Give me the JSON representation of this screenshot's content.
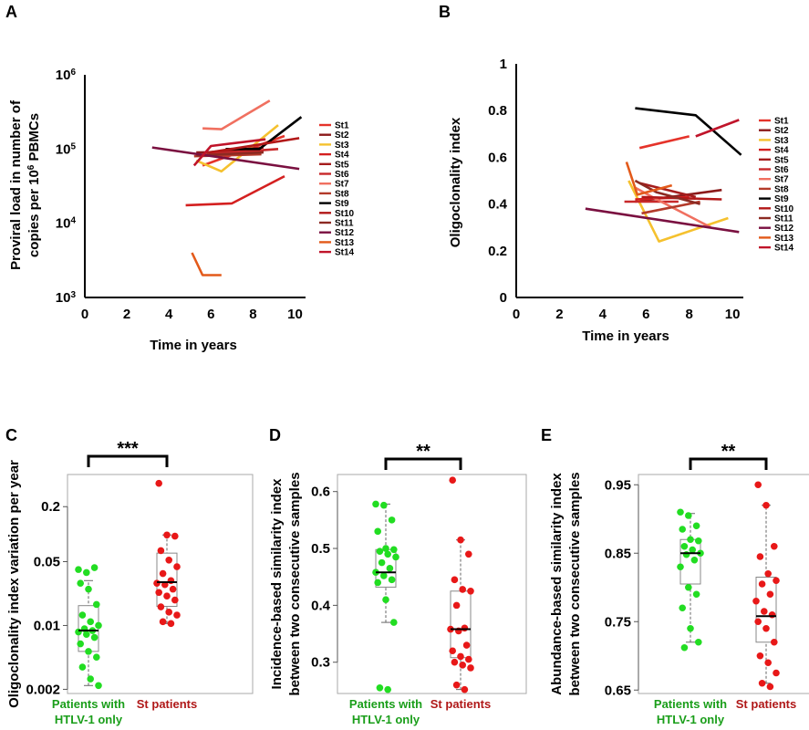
{
  "panels": {
    "A": "A",
    "B": "B",
    "C": "C",
    "D": "D",
    "E": "E"
  },
  "colors": {
    "St1": "#e5332a",
    "St2": "#8b1a1a",
    "St3": "#f5c12e",
    "St4": "#d42020",
    "St5": "#a51c1c",
    "St6": "#c8282a",
    "St7": "#f07060",
    "St8": "#b33a2a",
    "St9": "#000000",
    "St10": "#b21818",
    "St11": "#8c2a22",
    "St12": "#7a1040",
    "St13": "#e35a1a",
    "St14": "#c0142a",
    "green": "#22dd22",
    "red": "#e81818",
    "greenText": "#1a9e1a",
    "redText": "#b01818"
  },
  "chart_data": [
    {
      "type": "line",
      "panel": "A",
      "ylabel_line1": "Proviral load in number of",
      "ylabel_line2_pre": "copies per 10",
      "ylabel_line2_sup": "6",
      "ylabel_line2_post": " PBMCs",
      "xlabel": "Time in years",
      "yscale": "log",
      "ylim": [
        1000,
        1000000
      ],
      "xlim": [
        0,
        10.5
      ],
      "xticks": [
        "0",
        "2",
        "4",
        "6",
        "8",
        "10"
      ],
      "yticks": [
        {
          "base": "10",
          "exp": "3",
          "value": 1000
        },
        {
          "base": "10",
          "exp": "4",
          "value": 10000
        },
        {
          "base": "10",
          "exp": "5",
          "value": 100000
        },
        {
          "base": "10",
          "exp": "6",
          "value": 1000000
        }
      ],
      "series": [
        {
          "name": "St1",
          "points": [
            [
              5.6,
              60000
            ],
            [
              9.5,
              150000
            ]
          ]
        },
        {
          "name": "St2",
          "points": [
            [
              5.3,
              90000
            ],
            [
              8.5,
              92000
            ]
          ]
        },
        {
          "name": "St3",
          "points": [
            [
              5.3,
              70000
            ],
            [
              6.5,
              50000
            ],
            [
              9.2,
              210000
            ]
          ]
        },
        {
          "name": "St4",
          "points": [
            [
              4.8,
              17500
            ],
            [
              7.0,
              18500
            ],
            [
              9.5,
              43000
            ]
          ]
        },
        {
          "name": "St5",
          "points": [
            [
              5.8,
              90000
            ],
            [
              8.5,
              105000
            ]
          ]
        },
        {
          "name": "St6",
          "points": [
            [
              5.8,
              85000
            ],
            [
              9.2,
              100000
            ]
          ]
        },
        {
          "name": "St7",
          "points": [
            [
              5.6,
              190000
            ],
            [
              6.5,
              185000
            ],
            [
              8.8,
              450000
            ]
          ]
        },
        {
          "name": "St8",
          "points": [
            [
              5.2,
              80000
            ],
            [
              8.4,
              85000
            ]
          ]
        },
        {
          "name": "St9",
          "points": [
            [
              6.7,
              100000
            ],
            [
              8.3,
              100000
            ],
            [
              10.3,
              270000
            ]
          ]
        },
        {
          "name": "St10",
          "points": [
            [
              5.9,
              90000
            ],
            [
              10.2,
              140000
            ]
          ]
        },
        {
          "name": "St11",
          "points": [
            [
              5.3,
              82000
            ],
            [
              8.5,
              90000
            ]
          ]
        },
        {
          "name": "St12",
          "points": [
            [
              3.2,
              105000
            ],
            [
              10.2,
              54000
            ]
          ]
        },
        {
          "name": "St13",
          "points": [
            [
              5.1,
              4000
            ],
            [
              5.6,
              2000
            ],
            [
              6.5,
              2000
            ]
          ]
        },
        {
          "name": "St14",
          "points": [
            [
              5.2,
              60000
            ],
            [
              6.0,
              110000
            ],
            [
              8.6,
              135000
            ]
          ]
        }
      ]
    },
    {
      "type": "line",
      "panel": "B",
      "ylabel": "Oligoclonality index",
      "xlabel": "Time in years",
      "ylim": [
        0,
        1
      ],
      "xlim": [
        0,
        10.5
      ],
      "xticks": [
        "0",
        "2",
        "4",
        "6",
        "8",
        "10"
      ],
      "yticks": [
        "0",
        "0.2",
        "0.4",
        "0.6",
        "0.8",
        "1"
      ],
      "series": [
        {
          "name": "St1",
          "points": [
            [
              5.7,
              0.64
            ],
            [
              8.0,
              0.69
            ]
          ]
        },
        {
          "name": "St2",
          "points": [
            [
              5.5,
              0.41
            ],
            [
              9.5,
              0.46
            ]
          ]
        },
        {
          "name": "St3",
          "points": [
            [
              5.2,
              0.5
            ],
            [
              6.6,
              0.24
            ],
            [
              9.8,
              0.34
            ]
          ]
        },
        {
          "name": "St4",
          "points": [
            [
              5.5,
              0.42
            ],
            [
              8.0,
              0.43
            ]
          ]
        },
        {
          "name": "St5",
          "points": [
            [
              5.7,
              0.49
            ],
            [
              8.3,
              0.43
            ]
          ]
        },
        {
          "name": "St6",
          "points": [
            [
              5.0,
              0.41
            ],
            [
              7.5,
              0.41
            ]
          ]
        },
        {
          "name": "St7",
          "points": [
            [
              5.5,
              0.47
            ],
            [
              6.5,
              0.42
            ],
            [
              9.0,
              0.3
            ]
          ]
        },
        {
          "name": "St8",
          "points": [
            [
              5.8,
              0.36
            ],
            [
              8.5,
              0.41
            ]
          ]
        },
        {
          "name": "St9",
          "points": [
            [
              5.5,
              0.81
            ],
            [
              8.3,
              0.78
            ],
            [
              10.4,
              0.61
            ]
          ]
        },
        {
          "name": "St10",
          "points": [
            [
              5.8,
              0.43
            ],
            [
              9.5,
              0.42
            ]
          ]
        },
        {
          "name": "St11",
          "points": [
            [
              5.5,
              0.5
            ],
            [
              6.5,
              0.45
            ],
            [
              8.5,
              0.4
            ]
          ]
        },
        {
          "name": "St12",
          "points": [
            [
              3.2,
              0.38
            ],
            [
              10.3,
              0.28
            ]
          ]
        },
        {
          "name": "St13",
          "points": [
            [
              5.1,
              0.58
            ],
            [
              5.6,
              0.44
            ],
            [
              7.2,
              0.48
            ]
          ]
        },
        {
          "name": "St14",
          "points": [
            [
              8.3,
              0.69
            ],
            [
              10.3,
              0.76
            ]
          ]
        }
      ]
    },
    {
      "type": "scatter",
      "panel": "C",
      "ylabel": "Oligoclonality index variation per year",
      "yscale": "log",
      "ylim": [
        0.0018,
        0.45
      ],
      "yticks": [
        "0.002",
        "0.01",
        "0.05",
        "0.2"
      ],
      "ytick_values": [
        0.002,
        0.01,
        0.05,
        0.2
      ],
      "groups": [
        "Patients with",
        "St patients"
      ],
      "group_line2": [
        "HTLV-1 only",
        ""
      ],
      "significance": "***",
      "box": [
        {
          "q1": 0.0052,
          "median": 0.0088,
          "q3": 0.0165,
          "whisker_low": 0.0022,
          "whisker_high": 0.031
        },
        {
          "q1": 0.0162,
          "median": 0.0298,
          "q3": 0.062,
          "whisker_low": 0.0105,
          "whisker_high": 0.098
        }
      ],
      "values": [
        [
          0.041,
          0.038,
          0.043,
          0.029,
          0.025,
          0.017,
          0.013,
          0.011,
          0.01,
          0.0092,
          0.0088,
          0.0085,
          0.008,
          0.0074,
          0.0063,
          0.0052,
          0.0045,
          0.0035,
          0.0026,
          0.0022
        ],
        [
          0.36,
          0.098,
          0.095,
          0.066,
          0.052,
          0.044,
          0.037,
          0.031,
          0.029,
          0.028,
          0.025,
          0.023,
          0.021,
          0.019,
          0.016,
          0.014,
          0.013,
          0.011,
          0.0105
        ]
      ]
    },
    {
      "type": "scatter",
      "panel": "D",
      "ylabel_line1": "Incidence-based similarity index",
      "ylabel_line2": "between two consecutive samples",
      "ylim": [
        0.245,
        0.63
      ],
      "yticks": [
        "0.3",
        "0.4",
        "0.5",
        "0.6"
      ],
      "ytick_values": [
        0.3,
        0.4,
        0.5,
        0.6
      ],
      "groups": [
        "Patients with",
        "St patients"
      ],
      "group_line2": [
        "HTLV-1 only",
        ""
      ],
      "significance": "**",
      "box": [
        {
          "q1": 0.432,
          "median": 0.458,
          "q3": 0.498,
          "whisker_low": 0.37,
          "whisker_high": 0.578
        },
        {
          "q1": 0.308,
          "median": 0.358,
          "q3": 0.425,
          "whisker_low": 0.252,
          "whisker_high": 0.515
        }
      ],
      "values": [
        [
          0.578,
          0.576,
          0.55,
          0.53,
          0.5,
          0.498,
          0.495,
          0.49,
          0.485,
          0.475,
          0.465,
          0.458,
          0.452,
          0.445,
          0.44,
          0.41,
          0.37,
          0.255,
          0.252
        ],
        [
          0.62,
          0.515,
          0.49,
          0.445,
          0.428,
          0.425,
          0.4,
          0.36,
          0.358,
          0.355,
          0.33,
          0.32,
          0.31,
          0.305,
          0.3,
          0.295,
          0.29,
          0.26,
          0.252
        ]
      ]
    },
    {
      "type": "scatter",
      "panel": "E",
      "ylabel_line1": "Abundance-based similarity index",
      "ylabel_line2": "between two consecutive samples",
      "ylim": [
        0.645,
        0.965
      ],
      "yticks": [
        "0.65",
        "0.75",
        "0.85",
        "0.95"
      ],
      "ytick_values": [
        0.65,
        0.75,
        0.85,
        0.95
      ],
      "groups": [
        "Patients with",
        "St patients"
      ],
      "group_line2": [
        "HTLV-1 only",
        ""
      ],
      "significance": "**",
      "box": [
        {
          "q1": 0.805,
          "median": 0.85,
          "q3": 0.87,
          "whisker_low": 0.72,
          "whisker_high": 0.908
        },
        {
          "q1": 0.72,
          "median": 0.758,
          "q3": 0.815,
          "whisker_low": 0.66,
          "whisker_high": 0.92
        }
      ],
      "values": [
        [
          0.91,
          0.905,
          0.89,
          0.885,
          0.87,
          0.868,
          0.86,
          0.855,
          0.85,
          0.848,
          0.84,
          0.83,
          0.8,
          0.79,
          0.77,
          0.74,
          0.72,
          0.712
        ],
        [
          0.95,
          0.92,
          0.86,
          0.845,
          0.82,
          0.81,
          0.805,
          0.79,
          0.78,
          0.765,
          0.76,
          0.75,
          0.74,
          0.72,
          0.7,
          0.69,
          0.675,
          0.66,
          0.655
        ]
      ]
    }
  ]
}
